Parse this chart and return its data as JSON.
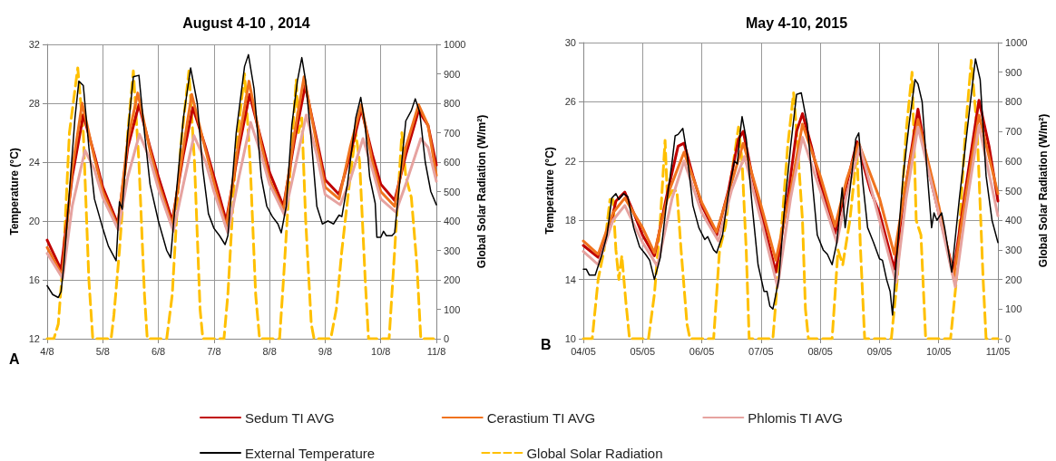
{
  "chart_data": [
    {
      "type": "line",
      "title": "August 4-10 , 2014",
      "ylabel": "Temperature (°C)",
      "y2label": "Global Solar Radiation (W/m²)",
      "annotations": [
        "A"
      ],
      "xlim": [
        "2014-08-04",
        "2014-08-11"
      ],
      "xticks": [
        {
          "value": "2014-08-04",
          "label": "4/8"
        },
        {
          "value": "2014-08-05",
          "label": "5/8"
        },
        {
          "value": "2014-08-06",
          "label": "6/8"
        },
        {
          "value": "2014-08-07",
          "label": "7/8"
        },
        {
          "value": "2014-08-08",
          "label": "8/8"
        },
        {
          "value": "2014-08-09",
          "label": "9/8"
        },
        {
          "value": "2014-08-10",
          "label": "10/8"
        },
        {
          "value": "2014-08-11",
          "label": "11/8"
        }
      ],
      "ylim": [
        12,
        32
      ],
      "yticks": [
        12,
        16,
        20,
        24,
        28,
        32
      ],
      "y2lim": [
        0,
        1000
      ],
      "y2ticks": [
        0,
        100,
        200,
        300,
        400,
        500,
        600,
        700,
        800,
        900,
        1000
      ],
      "grid": true,
      "legend": "bottom",
      "series": [
        {
          "name": "Sedum TI AVG",
          "color": "#c00000",
          "x": [
            "2014-08-04T00:00",
            "2014-08-04T06:00",
            "2014-08-04T10:48",
            "2014-08-04T15:36",
            "2014-08-04T20:24",
            "2014-08-05T00:00",
            "2014-08-05T06:29",
            "2014-08-05T10:48",
            "2014-08-05T15:36",
            "2014-08-05T20:24",
            "2014-08-06T00:00",
            "2014-08-06T06:00",
            "2014-08-06T10:48",
            "2014-08-06T14:53",
            "2014-08-06T20:24",
            "2014-08-07T00:00",
            "2014-08-07T05:17",
            "2014-08-07T10:48",
            "2014-08-07T15:22",
            "2014-08-07T20:24",
            "2014-08-08T00:00",
            "2014-08-08T06:00",
            "2014-08-08T10:48",
            "2014-08-08T15:22",
            "2014-08-08T20:24",
            "2014-08-09T00:00",
            "2014-08-09T06:00",
            "2014-08-09T10:48",
            "2014-08-09T15:36",
            "2014-08-09T20:24",
            "2014-08-10T00:00",
            "2014-08-10T06:00",
            "2014-08-10T10:48",
            "2014-08-10T16:19",
            "2014-08-10T20:24",
            "2014-08-11T00:00"
          ],
          "values": [
            18.7,
            16.7,
            23,
            27.2,
            24.5,
            22.3,
            19.8,
            25,
            27.9,
            25,
            23,
            20,
            24.5,
            27.7,
            25,
            23,
            20,
            25,
            28.6,
            25.5,
            23.3,
            21,
            25.5,
            29.2,
            25.5,
            22.8,
            21.8,
            24.5,
            27.6,
            24.5,
            22.5,
            21.4,
            24.5,
            27.5,
            26.5,
            23.8
          ]
        },
        {
          "name": "Cerastium TI AVG",
          "color": "#f0731e",
          "x": [
            "2014-08-04T00:00",
            "2014-08-04T06:29",
            "2014-08-04T10:48",
            "2014-08-04T15:07",
            "2014-08-04T20:24",
            "2014-08-05T00:00",
            "2014-08-05T06:29",
            "2014-08-05T10:48",
            "2014-08-05T15:07",
            "2014-08-05T20:24",
            "2014-08-06T00:00",
            "2014-08-06T06:00",
            "2014-08-06T10:48",
            "2014-08-06T14:24",
            "2014-08-06T20:24",
            "2014-08-07T00:00",
            "2014-08-07T05:17",
            "2014-08-07T10:48",
            "2014-08-07T15:07",
            "2014-08-07T20:24",
            "2014-08-08T00:00",
            "2014-08-08T06:00",
            "2014-08-08T10:48",
            "2014-08-08T14:53",
            "2014-08-08T20:24",
            "2014-08-09T00:00",
            "2014-08-09T06:00",
            "2014-08-09T10:48",
            "2014-08-09T15:36",
            "2014-08-09T20:24",
            "2014-08-10T00:00",
            "2014-08-10T06:00",
            "2014-08-10T10:48",
            "2014-08-10T16:19",
            "2014-08-10T20:24",
            "2014-08-11T00:00"
          ],
          "values": [
            18.2,
            16.3,
            23.5,
            28,
            24.3,
            22,
            19.6,
            25.5,
            28.7,
            24.8,
            22.6,
            19.7,
            25,
            28.6,
            24.8,
            22.6,
            19.6,
            25.5,
            29.5,
            25.2,
            22.8,
            20.7,
            26,
            29.8,
            25.2,
            22.3,
            21.5,
            25,
            27.9,
            24,
            22,
            21,
            25,
            27.9,
            26.5,
            23.1
          ]
        },
        {
          "name": "Phlomis TI AVG",
          "color": "#e6a3a0",
          "x": [
            "2014-08-04T00:00",
            "2014-08-04T06:43",
            "2014-08-04T10:48",
            "2014-08-04T16:19",
            "2014-08-04T20:24",
            "2014-08-05T00:00",
            "2014-08-05T06:43",
            "2014-08-05T10:48",
            "2014-08-05T15:50",
            "2014-08-05T20:24",
            "2014-08-06T00:00",
            "2014-08-06T06:29",
            "2014-08-06T10:48",
            "2014-08-06T15:22",
            "2014-08-06T20:24",
            "2014-08-07T00:00",
            "2014-08-07T06:00",
            "2014-08-07T10:48",
            "2014-08-07T15:50",
            "2014-08-07T20:24",
            "2014-08-08T00:00",
            "2014-08-08T06:29",
            "2014-08-08T10:48",
            "2014-08-08T15:50",
            "2014-08-08T20:24",
            "2014-08-09T00:00",
            "2014-08-09T06:29",
            "2014-08-09T10:48",
            "2014-08-09T16:19",
            "2014-08-09T20:24",
            "2014-08-10T00:00",
            "2014-08-10T06:29",
            "2014-08-10T10:48",
            "2014-08-10T17:17",
            "2014-08-10T20:24",
            "2014-08-11T00:00"
          ],
          "values": [
            17.8,
            16.1,
            21,
            24.8,
            23.5,
            21.6,
            19.4,
            23,
            25.9,
            24.2,
            22.2,
            19.3,
            22.5,
            25.8,
            24,
            22,
            19.2,
            23,
            26.7,
            24.5,
            22.5,
            20.4,
            23.5,
            27.2,
            24.5,
            21.8,
            21.1,
            22.8,
            25.6,
            23.5,
            21.5,
            20.6,
            22.5,
            25.6,
            25,
            22.7
          ]
        },
        {
          "name": "External Temperature",
          "color": "#000000",
          "x": [
            "2014-08-04T00:00",
            "2014-08-04T02:24",
            "2014-08-04T04:48",
            "2014-08-04T06:00",
            "2014-08-04T07:12",
            "2014-08-04T09:36",
            "2014-08-04T12:00",
            "2014-08-04T13:41",
            "2014-08-04T15:36",
            "2014-08-04T18:00",
            "2014-08-04T20:24",
            "2014-08-05T00:00",
            "2014-08-05T02:24",
            "2014-08-05T05:46",
            "2014-08-05T07:12",
            "2014-08-05T08:24",
            "2014-08-05T10:48",
            "2014-08-05T13:12",
            "2014-08-05T15:36",
            "2014-08-05T18:00",
            "2014-08-05T20:24",
            "2014-08-06T00:00",
            "2014-08-06T03:36",
            "2014-08-06T05:17",
            "2014-08-06T07:12",
            "2014-08-06T10:48",
            "2014-08-06T13:55",
            "2014-08-06T16:48",
            "2014-08-06T19:12",
            "2014-08-06T21:36",
            "2014-08-07T00:00",
            "2014-08-07T02:24",
            "2014-08-07T04:48",
            "2014-08-07T06:00",
            "2014-08-07T09:36",
            "2014-08-07T13:12",
            "2014-08-07T14:53",
            "2014-08-07T17:17",
            "2014-08-07T20:24",
            "2014-08-07T22:48",
            "2014-08-08T01:12",
            "2014-08-08T03:36",
            "2014-08-08T05:02",
            "2014-08-08T07:12",
            "2014-08-08T09:36",
            "2014-08-08T12:00",
            "2014-08-08T13:55",
            "2014-08-08T15:36",
            "2014-08-08T18:00",
            "2014-08-08T20:24",
            "2014-08-08T22:48",
            "2014-08-09T01:12",
            "2014-08-09T03:36",
            "2014-08-09T06:00",
            "2014-08-09T07:12",
            "2014-08-09T09:36",
            "2014-08-09T13:12",
            "2014-08-09T15:22",
            "2014-08-09T17:17",
            "2014-08-09T19:12",
            "2014-08-09T21:36",
            "2014-08-09T22:19",
            "2014-08-10T00:00",
            "2014-08-10T01:12",
            "2014-08-10T02:24",
            "2014-08-10T04:48",
            "2014-08-10T06:00",
            "2014-08-10T08:24",
            "2014-08-10T10:48",
            "2014-08-10T13:12",
            "2014-08-10T14:53",
            "2014-08-10T16:48",
            "2014-08-10T19:12",
            "2014-08-10T21:36",
            "2014-08-11T00:00"
          ],
          "values": [
            15.6,
            15,
            14.8,
            15.2,
            17,
            22,
            27,
            29.5,
            29.2,
            25,
            21.5,
            19.5,
            18.3,
            17.3,
            21.3,
            20.8,
            26,
            29.8,
            29.9,
            26,
            22.5,
            20,
            18,
            17.5,
            21,
            27,
            30.4,
            28,
            23.5,
            20.5,
            19.5,
            19,
            18.4,
            19,
            26,
            30.5,
            31.3,
            29,
            23,
            21,
            20.3,
            19.8,
            19.2,
            21,
            26.5,
            29.5,
            31.1,
            29.5,
            25.5,
            21,
            19.8,
            20,
            19.8,
            20.4,
            20.3,
            22.5,
            27,
            28.4,
            26.5,
            23,
            21.2,
            18.9,
            18.9,
            19.3,
            19,
            19,
            19.2,
            23,
            26.8,
            27.5,
            28.3,
            27.4,
            24,
            22,
            21.1
          ]
        },
        {
          "name": "Global Solar Radiation",
          "color": "#ffc000",
          "axis": "y2",
          "line_style": "dashed",
          "x": [
            "2014-08-04T00:00",
            "2014-08-04T02:53",
            "2014-08-04T04:48",
            "2014-08-04T07:12",
            "2014-08-04T09:36",
            "2014-08-04T13:12",
            "2014-08-04T15:36",
            "2014-08-04T18:00",
            "2014-08-04T19:41",
            "2014-08-05T03:36",
            "2014-08-05T04:48",
            "2014-08-05T07:12",
            "2014-08-05T10:48",
            "2014-08-05T13:12",
            "2014-08-05T15:36",
            "2014-08-05T18:00",
            "2014-08-05T19:12",
            "2014-08-06T03:36",
            "2014-08-06T06:00",
            "2014-08-06T09:36",
            "2014-08-06T13:12",
            "2014-08-06T15:36",
            "2014-08-06T18:00",
            "2014-08-06T19:12",
            "2014-08-07T04:19",
            "2014-08-07T06:00",
            "2014-08-07T09:36",
            "2014-08-07T13:12",
            "2014-08-07T15:36",
            "2014-08-07T18:00",
            "2014-08-07T19:41",
            "2014-08-08T04:19",
            "2014-08-08T06:00",
            "2014-08-08T09:07",
            "2014-08-08T11:31",
            "2014-08-08T12:29",
            "2014-08-08T13:55",
            "2014-08-08T15:36",
            "2014-08-08T18:00",
            "2014-08-08T19:12",
            "2014-08-09T02:24",
            "2014-08-09T04:48",
            "2014-08-09T07:12",
            "2014-08-09T10:48",
            "2014-08-09T13:12",
            "2014-08-09T14:53",
            "2014-08-09T17:17",
            "2014-08-09T18:43",
            "2014-08-10T03:36",
            "2014-08-10T06:00",
            "2014-08-10T09:07",
            "2014-08-10T10:48",
            "2014-08-10T13:12",
            "2014-08-10T15:36",
            "2014-08-10T17:17",
            "2014-08-10T22:48"
          ],
          "values": [
            0,
            0,
            50,
            300,
            700,
            920,
            700,
            200,
            0,
            0,
            80,
            300,
            700,
            910,
            600,
            150,
            0,
            0,
            150,
            650,
            910,
            600,
            100,
            0,
            0,
            150,
            650,
            900,
            600,
            150,
            0,
            0,
            200,
            600,
            880,
            700,
            750,
            400,
            50,
            0,
            0,
            100,
            300,
            550,
            700,
            600,
            200,
            0,
            0,
            300,
            700,
            550,
            480,
            250,
            0,
            0
          ]
        }
      ]
    },
    {
      "type": "line",
      "title": "May 4-10, 2015",
      "ylabel": "Temperature (°C)",
      "y2label": "Global Solar Radiation (W/m²)",
      "annotations": [
        "B"
      ],
      "xlim": [
        "2015-05-04",
        "2015-05-11"
      ],
      "xticks": [
        {
          "value": "2015-05-04",
          "label": "04/05"
        },
        {
          "value": "2015-05-05",
          "label": "05/05"
        },
        {
          "value": "2015-05-06",
          "label": "06/05"
        },
        {
          "value": "2015-05-07",
          "label": "07/05"
        },
        {
          "value": "2015-05-08",
          "label": "08/05"
        },
        {
          "value": "2015-05-09",
          "label": "09/05"
        },
        {
          "value": "2015-05-10",
          "label": "10/05"
        },
        {
          "value": "2015-05-11",
          "label": "11/05"
        }
      ],
      "ylim": [
        10,
        30
      ],
      "yticks": [
        10,
        14,
        18,
        22,
        26,
        30
      ],
      "y2lim": [
        0,
        1000
      ],
      "y2ticks": [
        0,
        100,
        200,
        300,
        400,
        500,
        600,
        700,
        800,
        900,
        1000
      ],
      "grid": true,
      "series": [
        {
          "name": "Sedum TI AVG",
          "color": "#c00000",
          "x": [
            "2015-05-04T00:00",
            "2015-05-04T06:00",
            "2015-05-04T10:48",
            "2015-05-04T13:12",
            "2015-05-04T16:48",
            "2015-05-04T20:24",
            "2015-05-05T00:00",
            "2015-05-05T04:48",
            "2015-05-05T09:36",
            "2015-05-05T14:24",
            "2015-05-05T16:48",
            "2015-05-05T20:24",
            "2015-05-06T00:00",
            "2015-05-06T06:00",
            "2015-05-06T10:48",
            "2015-05-06T14:53",
            "2015-05-06T16:48",
            "2015-05-06T20:24",
            "2015-05-07T00:00",
            "2015-05-07T06:00",
            "2015-05-07T10:48",
            "2015-05-07T14:24",
            "2015-05-07T16:48",
            "2015-05-07T20:24",
            "2015-05-08T00:00",
            "2015-05-08T06:00",
            "2015-05-08T10:48",
            "2015-05-08T14:53",
            "2015-05-08T20:24",
            "2015-05-09T00:00",
            "2015-05-09T06:00",
            "2015-05-09T10:48",
            "2015-05-09T15:36",
            "2015-05-09T20:24",
            "2015-05-10T00:00",
            "2015-05-10T06:00",
            "2015-05-10T10:48",
            "2015-05-10T16:19",
            "2015-05-10T20:24",
            "2015-05-11T00:00"
          ],
          "values": [
            16.3,
            15.5,
            17.5,
            19.3,
            19.9,
            18.5,
            17,
            15.6,
            19.5,
            23,
            23.2,
            21,
            19,
            17,
            20,
            23.5,
            24,
            21,
            18.5,
            14.5,
            19.5,
            24,
            25.2,
            23,
            20.5,
            17.1,
            20.5,
            23.3,
            20,
            18.5,
            14.7,
            20.5,
            25.5,
            21,
            18.5,
            14.5,
            20,
            26.1,
            23,
            19.3
          ]
        },
        {
          "name": "Cerastium TI AVG",
          "color": "#f0731e",
          "x": [
            "2015-05-04T00:00",
            "2015-05-04T06:00",
            "2015-05-04T12:00",
            "2015-05-04T16:48",
            "2015-05-05T00:00",
            "2015-05-05T04:48",
            "2015-05-05T10:48",
            "2015-05-05T16:48",
            "2015-05-06T00:00",
            "2015-05-06T06:00",
            "2015-05-06T12:00",
            "2015-05-06T16:48",
            "2015-05-07T00:00",
            "2015-05-07T06:00",
            "2015-05-07T12:00",
            "2015-05-07T16:48",
            "2015-05-08T00:00",
            "2015-05-08T06:00",
            "2015-05-08T10:48",
            "2015-05-08T15:36",
            "2015-05-09T00:00",
            "2015-05-09T06:00",
            "2015-05-09T10:48",
            "2015-05-09T15:36",
            "2015-05-10T00:00",
            "2015-05-10T06:00",
            "2015-05-10T10:48",
            "2015-05-10T16:19",
            "2015-05-11T00:00"
          ],
          "values": [
            16.6,
            15.7,
            18.5,
            19.5,
            17.5,
            15.8,
            20,
            22.6,
            19.2,
            17.2,
            20.5,
            23.2,
            19,
            15.3,
            20,
            24.5,
            21,
            17.6,
            20.8,
            23.2,
            19.5,
            15.7,
            20.5,
            24.8,
            19,
            14.1,
            19.5,
            25.1,
            19.8
          ]
        },
        {
          "name": "Phlomis TI AVG",
          "color": "#e6a3a0",
          "x": [
            "2015-05-04T00:00",
            "2015-05-04T06:00",
            "2015-05-04T12:00",
            "2015-05-04T16:48",
            "2015-05-05T00:00",
            "2015-05-05T06:00",
            "2015-05-05T12:00",
            "2015-05-05T16:48",
            "2015-05-06T00:00",
            "2015-05-06T06:43",
            "2015-05-06T12:00",
            "2015-05-06T17:17",
            "2015-05-07T00:00",
            "2015-05-07T06:43",
            "2015-05-07T12:00",
            "2015-05-07T16:48",
            "2015-05-08T00:00",
            "2015-05-08T06:43",
            "2015-05-08T10:48",
            "2015-05-08T16:05",
            "2015-05-09T00:00",
            "2015-05-09T06:43",
            "2015-05-09T10:48",
            "2015-05-09T15:36",
            "2015-05-10T00:00",
            "2015-05-10T06:43",
            "2015-05-10T10:48",
            "2015-05-10T16:19",
            "2015-05-11T00:00"
          ],
          "values": [
            15.9,
            15,
            18,
            19,
            16.5,
            14.9,
            19.5,
            22,
            18.5,
            16.6,
            20,
            22.3,
            18,
            13.5,
            19.5,
            23.6,
            20,
            16.5,
            19.8,
            23,
            18,
            13.8,
            19.5,
            24.3,
            18.5,
            13.5,
            18.5,
            24.4,
            18.3
          ]
        },
        {
          "name": "External Temperature",
          "color": "#000000",
          "x": [
            "2015-05-04T00:00",
            "2015-05-04T01:12",
            "2015-05-04T02:24",
            "2015-05-04T04:48",
            "2015-05-04T07:12",
            "2015-05-04T09:36",
            "2015-05-04T11:31",
            "2015-05-04T13:12",
            "2015-05-04T14:24",
            "2015-05-04T16:19",
            "2015-05-04T18:00",
            "2015-05-04T20:24",
            "2015-05-04T22:48",
            "2015-05-05T01:12",
            "2015-05-05T02:53",
            "2015-05-05T04:48",
            "2015-05-05T07:12",
            "2015-05-05T09:36",
            "2015-05-05T12:00",
            "2015-05-05T13:12",
            "2015-05-05T14:24",
            "2015-05-05T16:19",
            "2015-05-05T18:00",
            "2015-05-05T20:24",
            "2015-05-05T22:48",
            "2015-05-06T01:12",
            "2015-05-06T02:24",
            "2015-05-06T04:48",
            "2015-05-06T06:00",
            "2015-05-06T08:24",
            "2015-05-06T10:48",
            "2015-05-06T13:12",
            "2015-05-06T14:24",
            "2015-05-06T15:36",
            "2015-05-06T16:19",
            "2015-05-06T18:00",
            "2015-05-06T20:24",
            "2015-05-06T22:48",
            "2015-05-07T01:12",
            "2015-05-07T02:24",
            "2015-05-07T03:36",
            "2015-05-07T04:48",
            "2015-05-07T07:12",
            "2015-05-07T09:36",
            "2015-05-07T12:00",
            "2015-05-07T14:24",
            "2015-05-07T16:19",
            "2015-05-07T18:43",
            "2015-05-07T21:07",
            "2015-05-07T22:48",
            "2015-05-08T01:12",
            "2015-05-08T02:53",
            "2015-05-08T04:48",
            "2015-05-08T06:43",
            "2015-05-08T08:53",
            "2015-05-08T10:05",
            "2015-05-08T12:00",
            "2015-05-08T14:24",
            "2015-05-08T15:36",
            "2015-05-08T17:17",
            "2015-05-08T19:12",
            "2015-05-08T21:36",
            "2015-05-09T00:00",
            "2015-05-09T01:12",
            "2015-05-09T02:53",
            "2015-05-09T04:19",
            "2015-05-09T05:17",
            "2015-05-09T06:43",
            "2015-05-09T09:36",
            "2015-05-09T12:00",
            "2015-05-09T14:24",
            "2015-05-09T15:36",
            "2015-05-09T17:17",
            "2015-05-09T19:12",
            "2015-05-09T21:07",
            "2015-05-09T22:05",
            "2015-05-09T23:17",
            "2015-05-10T01:12",
            "2015-05-10T02:24",
            "2015-05-10T05:17",
            "2015-05-10T08:24",
            "2015-05-10T10:48",
            "2015-05-10T13:12",
            "2015-05-10T14:53",
            "2015-05-10T16:48",
            "2015-05-10T19:12",
            "2015-05-10T21:36",
            "2015-05-11T00:00"
          ],
          "values": [
            14.7,
            14.7,
            14.3,
            14.3,
            15.5,
            17,
            19.5,
            19.8,
            19.4,
            19.8,
            19.6,
            17.5,
            16.2,
            15.7,
            15.3,
            14,
            15.5,
            19,
            22,
            23.7,
            23.8,
            24.2,
            22.5,
            19,
            17.5,
            16.7,
            16.9,
            16,
            15.8,
            17,
            19.8,
            22,
            21.8,
            24,
            25,
            23.5,
            19,
            15,
            13.2,
            13.2,
            12.2,
            12,
            14,
            19,
            23,
            26.5,
            26.6,
            24.5,
            20,
            17,
            16,
            15.7,
            15,
            16.5,
            20.2,
            17.5,
            20,
            23.5,
            23.9,
            20.5,
            17.5,
            16.5,
            15.4,
            15.3,
            14,
            13.2,
            11.6,
            15,
            21,
            24.5,
            27.5,
            27.2,
            26,
            21.5,
            17.5,
            18.5,
            18,
            18.5,
            17.5,
            14.5,
            19.5,
            23,
            26.5,
            28.9,
            27.5,
            21,
            18,
            16.5
          ]
        },
        {
          "name": "Global Solar Radiation",
          "color": "#ffc000",
          "axis": "y2",
          "line_style": "dashed",
          "x": [
            "2015-05-04T00:00",
            "2015-05-04T03:36",
            "2015-05-04T06:00",
            "2015-05-04T08:24",
            "2015-05-04T10:48",
            "2015-05-04T12:00",
            "2015-05-04T13:12",
            "2015-05-04T14:24",
            "2015-05-04T15:36",
            "2015-05-04T17:17",
            "2015-05-04T18:43",
            "2015-05-05T02:24",
            "2015-05-05T04:48",
            "2015-05-05T07:12",
            "2015-05-05T09:07",
            "2015-05-05T10:05",
            "2015-05-05T12:00",
            "2015-05-05T13:55",
            "2015-05-05T15:36",
            "2015-05-05T18:00",
            "2015-05-05T19:12",
            "2015-05-06T04:48",
            "2015-05-06T07:12",
            "2015-05-06T09:36",
            "2015-05-06T12:00",
            "2015-05-06T14:53",
            "2015-05-06T16:19",
            "2015-05-06T18:00",
            "2015-05-06T19:12",
            "2015-05-07T04:48",
            "2015-05-07T07:12",
            "2015-05-07T10:48",
            "2015-05-07T13:12",
            "2015-05-07T14:24",
            "2015-05-07T16:48",
            "2015-05-07T18:00",
            "2015-05-07T19:12",
            "2015-05-08T04:48",
            "2015-05-08T07:12",
            "2015-05-08T09:07",
            "2015-05-08T12:00",
            "2015-05-08T14:53",
            "2015-05-08T16:19",
            "2015-05-08T18:00",
            "2015-05-09T04:48",
            "2015-05-09T07:12",
            "2015-05-09T10:48",
            "2015-05-09T13:12",
            "2015-05-09T14:53",
            "2015-05-09T16:48",
            "2015-05-09T18:43",
            "2015-05-10T04:48",
            "2015-05-10T07:12",
            "2015-05-10T10:48",
            "2015-05-10T13:12",
            "2015-05-10T15:36",
            "2015-05-10T18:00",
            "2015-05-10T19:12",
            "2015-05-11T00:00"
          ],
          "values": [
            0,
            0,
            200,
            300,
            470,
            470,
            300,
            200,
            280,
            120,
            0,
            0,
            150,
            400,
            670,
            470,
            500,
            500,
            300,
            50,
            0,
            0,
            300,
            380,
            550,
            715,
            600,
            300,
            0,
            0,
            250,
            650,
            830,
            700,
            400,
            100,
            0,
            0,
            300,
            250,
            400,
            630,
            300,
            0,
            0,
            200,
            700,
            900,
            400,
            350,
            0,
            0,
            200,
            700,
            940,
            700,
            200,
            0,
            0
          ]
        }
      ]
    }
  ]
}
